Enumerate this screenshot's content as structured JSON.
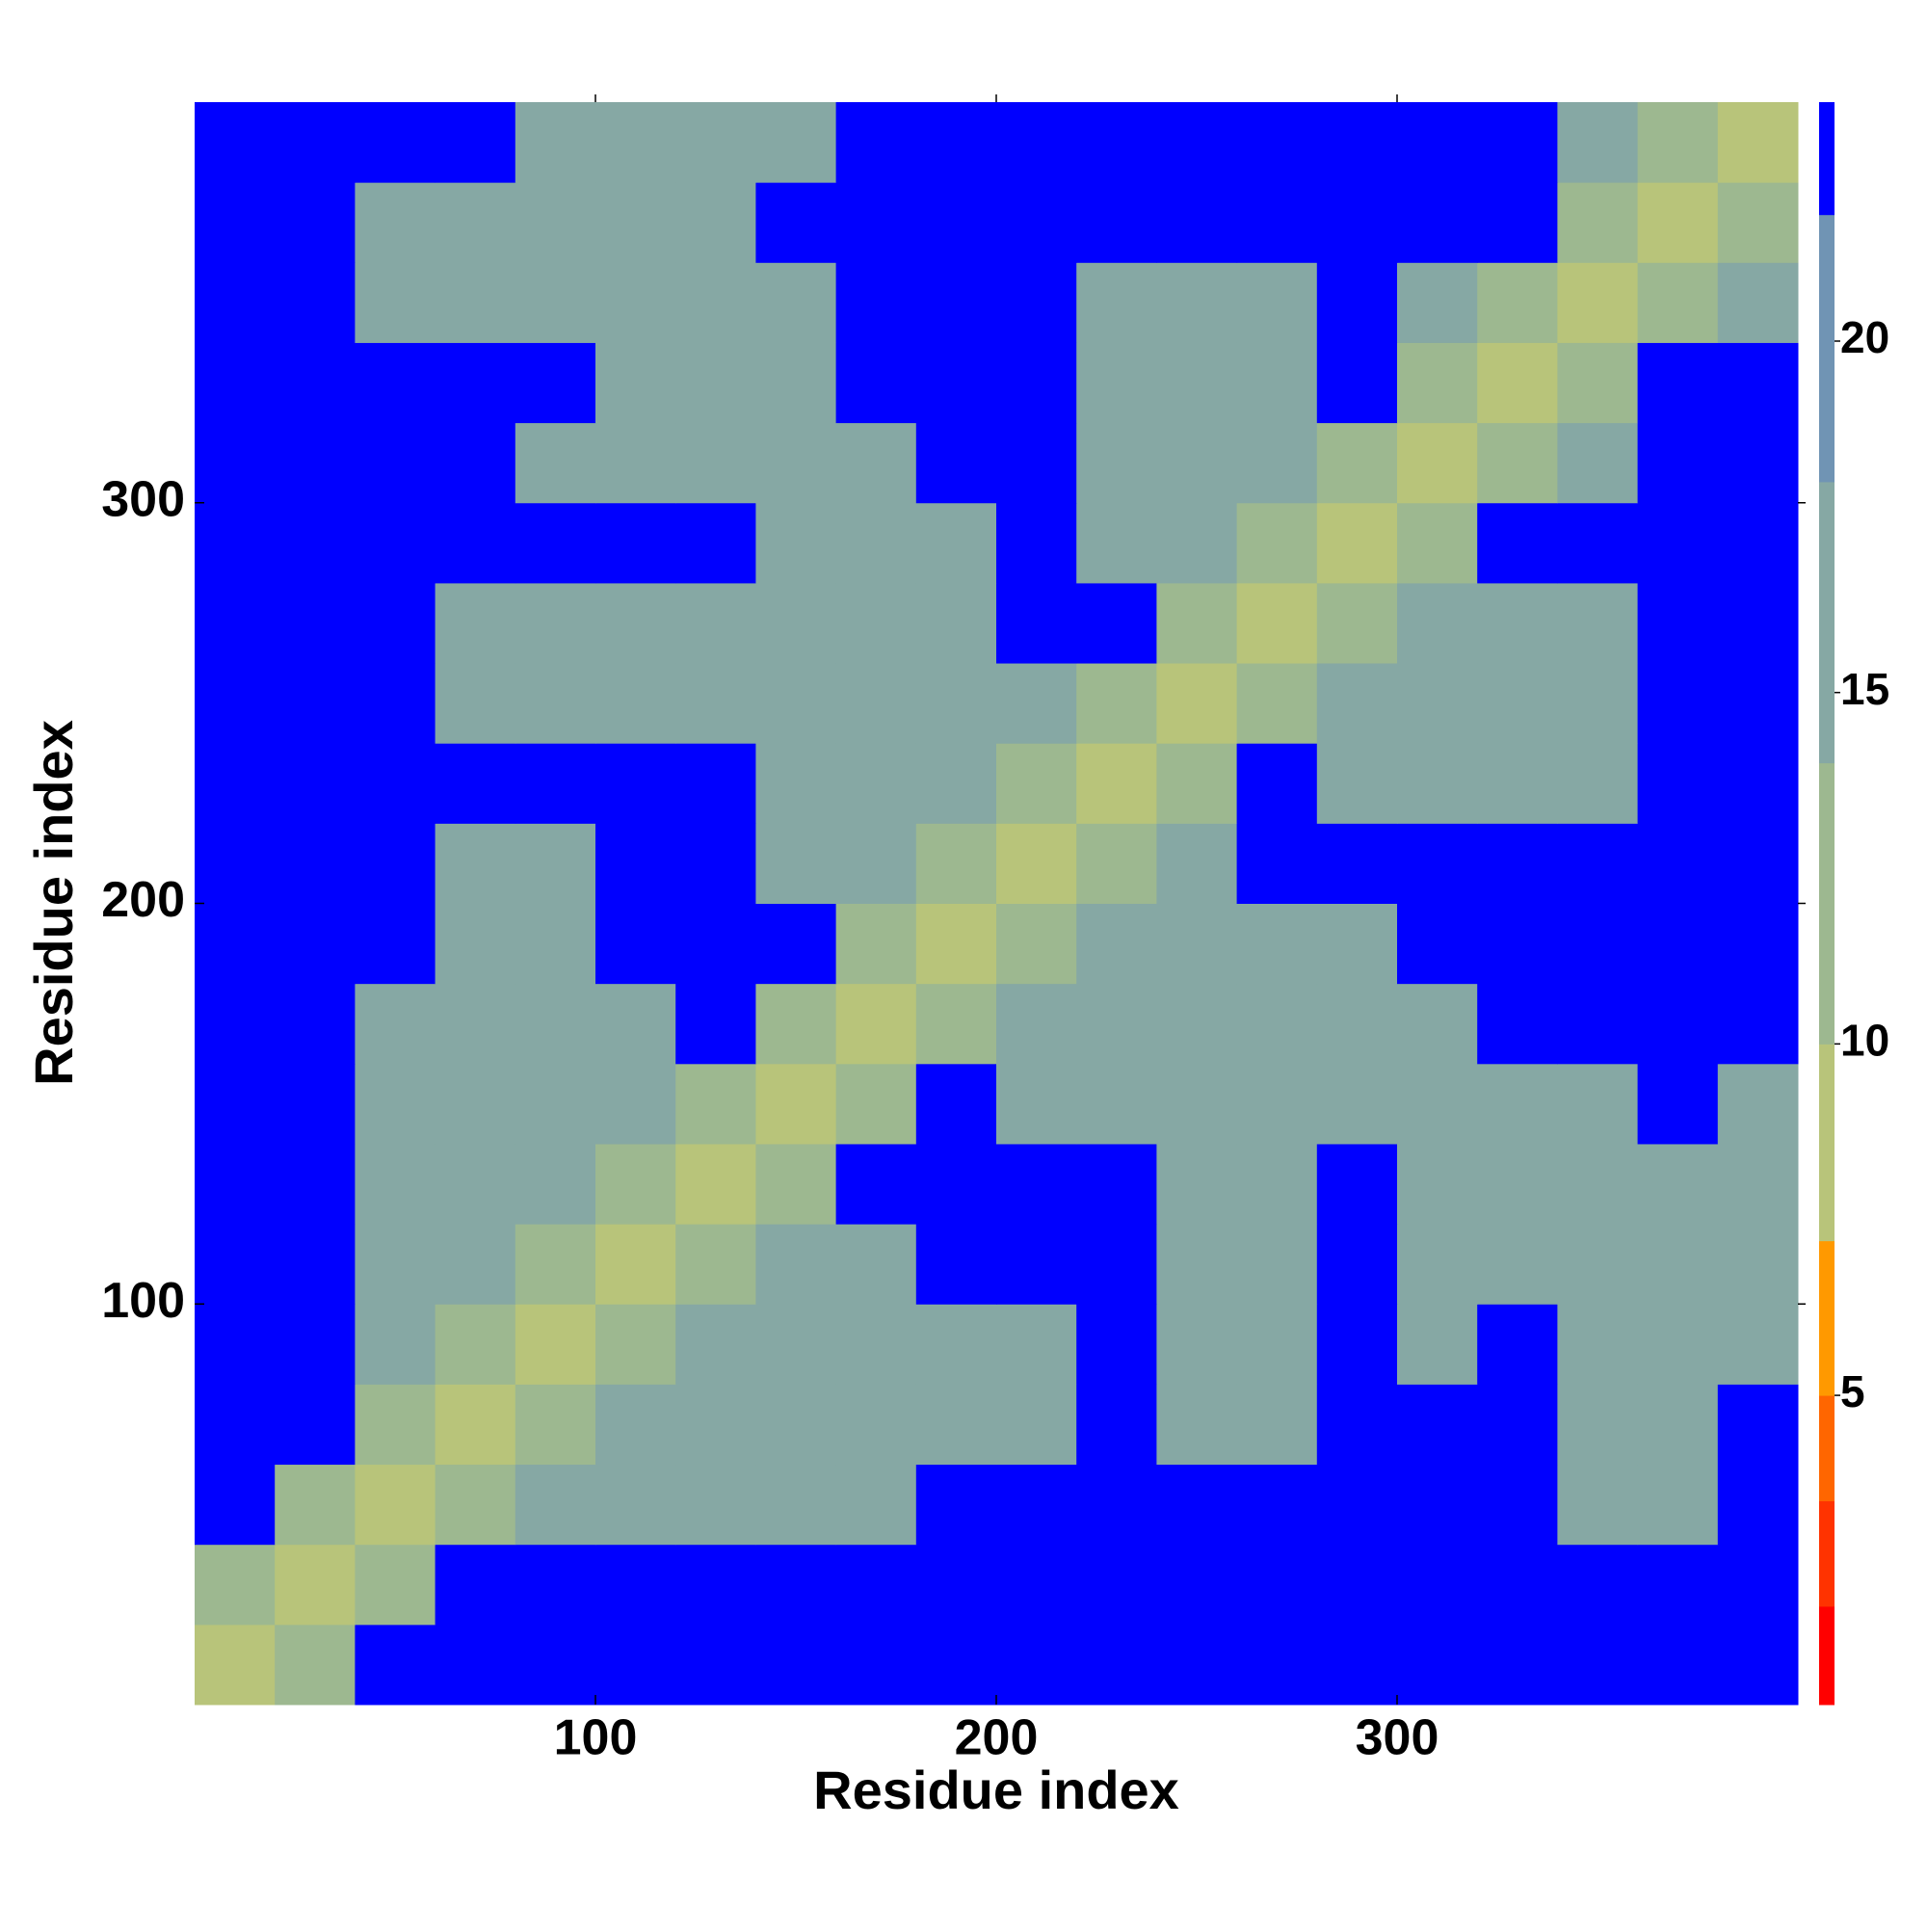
{
  "chart_data": {
    "type": "heatmap",
    "xlabel": "Residue index",
    "ylabel": "Residue index",
    "x": [
      10,
      30,
      50,
      70,
      90,
      110,
      130,
      150,
      170,
      190,
      210,
      230,
      250,
      270,
      290,
      310,
      330,
      350,
      370,
      390
    ],
    "y": [
      10,
      30,
      50,
      70,
      90,
      110,
      130,
      150,
      170,
      190,
      210,
      230,
      250,
      270,
      290,
      310,
      330,
      350,
      370,
      390
    ],
    "values": [
      [
        8,
        14,
        23,
        23,
        23,
        23,
        23,
        23,
        23,
        23,
        23,
        23,
        23,
        23,
        23,
        23,
        23,
        23,
        23,
        23
      ],
      [
        14,
        8,
        14,
        23,
        23,
        23,
        23,
        23,
        23,
        23,
        23,
        23,
        23,
        23,
        23,
        23,
        23,
        23,
        23,
        23
      ],
      [
        23,
        14,
        8,
        14,
        16,
        16,
        16,
        16,
        16,
        23,
        23,
        23,
        23,
        23,
        23,
        23,
        23,
        16,
        16,
        23
      ],
      [
        23,
        23,
        14,
        8,
        14,
        16,
        16,
        16,
        16,
        16,
        16,
        23,
        16,
        16,
        23,
        23,
        23,
        16,
        16,
        23
      ],
      [
        23,
        23,
        16,
        14,
        8,
        14,
        16,
        16,
        16,
        16,
        16,
        23,
        16,
        16,
        23,
        16,
        23,
        16,
        16,
        16
      ],
      [
        23,
        23,
        16,
        16,
        14,
        8,
        14,
        16,
        16,
        23,
        23,
        23,
        16,
        16,
        23,
        16,
        16,
        16,
        16,
        16
      ],
      [
        23,
        23,
        16,
        16,
        16,
        14,
        8,
        14,
        23,
        23,
        23,
        23,
        16,
        16,
        23,
        16,
        16,
        16,
        16,
        16
      ],
      [
        23,
        23,
        16,
        16,
        16,
        16,
        14,
        8,
        14,
        23,
        16,
        16,
        16,
        16,
        16,
        16,
        16,
        16,
        23,
        16
      ],
      [
        23,
        23,
        16,
        16,
        16,
        16,
        23,
        14,
        8,
        14,
        16,
        16,
        16,
        16,
        16,
        16,
        23,
        23,
        23,
        23
      ],
      [
        23,
        23,
        23,
        16,
        16,
        23,
        23,
        23,
        14,
        8,
        14,
        16,
        16,
        16,
        16,
        23,
        23,
        23,
        23,
        23
      ],
      [
        23,
        23,
        23,
        16,
        16,
        23,
        23,
        16,
        16,
        14,
        8,
        14,
        16,
        23,
        23,
        23,
        23,
        23,
        23,
        23
      ],
      [
        23,
        23,
        23,
        23,
        23,
        23,
        23,
        16,
        16,
        16,
        14,
        8,
        14,
        23,
        16,
        16,
        16,
        16,
        23,
        23
      ],
      [
        23,
        23,
        23,
        16,
        16,
        16,
        16,
        16,
        16,
        16,
        16,
        14,
        8,
        14,
        16,
        16,
        16,
        16,
        23,
        23
      ],
      [
        23,
        23,
        23,
        16,
        16,
        16,
        16,
        16,
        16,
        16,
        23,
        23,
        14,
        8,
        14,
        16,
        16,
        16,
        23,
        23
      ],
      [
        23,
        23,
        23,
        23,
        23,
        23,
        23,
        16,
        16,
        16,
        23,
        16,
        16,
        14,
        8,
        14,
        23,
        23,
        23,
        23
      ],
      [
        23,
        23,
        23,
        23,
        16,
        16,
        16,
        16,
        16,
        23,
        23,
        16,
        16,
        16,
        14,
        8,
        14,
        16,
        23,
        23
      ],
      [
        23,
        23,
        23,
        23,
        23,
        16,
        16,
        16,
        23,
        23,
        23,
        16,
        16,
        16,
        23,
        14,
        8,
        14,
        23,
        23
      ],
      [
        23,
        23,
        16,
        16,
        16,
        16,
        16,
        16,
        23,
        23,
        23,
        16,
        16,
        16,
        23,
        16,
        14,
        8,
        14,
        16
      ],
      [
        23,
        23,
        16,
        16,
        16,
        16,
        16,
        23,
        23,
        23,
        23,
        23,
        23,
        23,
        23,
        23,
        23,
        14,
        8,
        14
      ],
      [
        23,
        23,
        23,
        23,
        16,
        16,
        16,
        16,
        23,
        23,
        23,
        23,
        23,
        23,
        23,
        23,
        23,
        16,
        14,
        8
      ]
    ],
    "xlim": [
      0,
      400
    ],
    "ylim": [
      0,
      400
    ],
    "xticks": [
      100,
      200,
      300
    ],
    "yticks": [
      100,
      200,
      300
    ],
    "zlim": [
      0.6,
      23.4
    ],
    "zticks": [
      5,
      10,
      15,
      20
    ],
    "colorscale": [
      [
        2,
        "#ff0000"
      ],
      [
        3.5,
        "#ff3300"
      ],
      [
        5,
        "#ff6600"
      ],
      [
        7.2,
        "#ff9900"
      ],
      [
        10,
        "#b8c47a"
      ],
      [
        14,
        "#9db890"
      ],
      [
        18,
        "#86a8a4"
      ],
      [
        21.8,
        "#7094b4"
      ],
      [
        23.4,
        "#0000ff"
      ]
    ]
  }
}
